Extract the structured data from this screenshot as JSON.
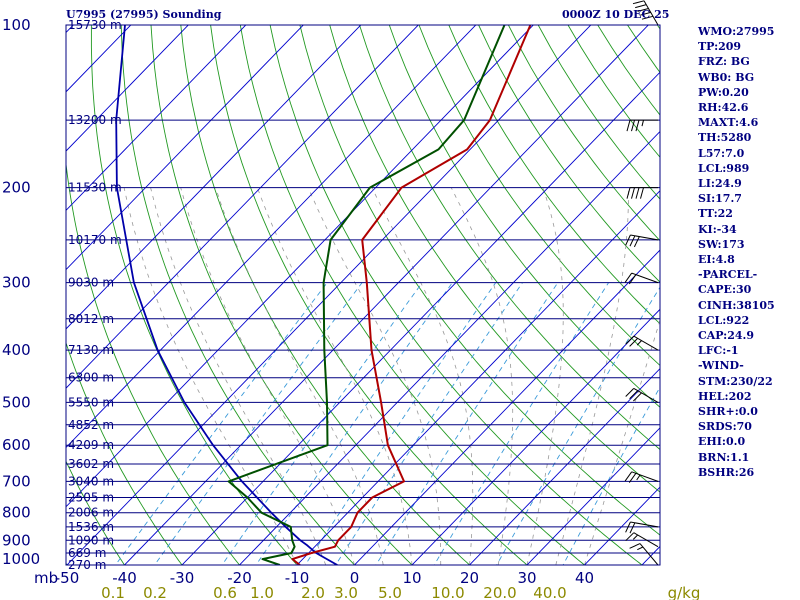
{
  "header": {
    "station_title": "U7995 (27995) Sounding",
    "valid_time": "0000Z 10 DEC 25"
  },
  "stats": [
    "WMO:27995",
    "TP:209",
    "FRZ: BG",
    "WB0: BG",
    "PW:0.20",
    "RH:42.6",
    "MAXT:4.6",
    "TH:5280",
    "L57:7.0",
    "LCL:989",
    "LI:24.9",
    "SI:17.7",
    "TT:22",
    "KI:-34",
    "SW:173",
    "EI:4.8",
    "-PARCEL-",
    "CAPE:30",
    "CINH:38105",
    "LCL:922",
    "CAP:24.9",
    "LFC:-1",
    "-WIND-",
    "STM:230/22",
    "HEL:202",
    "SHR+:0.0",
    "SRDS:70",
    "EHI:0.0",
    "BRN:1.1",
    "BSHR:26"
  ],
  "colors": {
    "frame": "#000080",
    "isobar": "#000080",
    "isotherm": "#0000cd",
    "dry_adiabat": "#229922",
    "moist_adiabat": "#999999",
    "mixing_ratio": "#3a9ad9",
    "temperature": "#b00000",
    "dewpoint": "#005000",
    "parcel": "#0000aa",
    "wind_barb": "#000000"
  },
  "chart_data": {
    "type": "skew-t log-p sounding",
    "pressure_unit": "mb",
    "pressure_range": [
      1000,
      100
    ],
    "temp_range": [
      -50,
      50
    ],
    "pressure_ticks": [
      100,
      200,
      300,
      400,
      500,
      600,
      700,
      800,
      900,
      1000
    ],
    "temp_ticks": [
      "-50",
      "-40",
      "-30",
      "-20",
      "-10",
      "0",
      "10",
      "20",
      "30",
      "40"
    ],
    "mixing_ratio_ticks": [
      "0.1",
      "0.2",
      "0.6",
      "1.0",
      "2.0",
      "3.0",
      "5.0",
      "10.0",
      "20.0",
      "40.0"
    ],
    "mixing_ratio_unit": "g/kg",
    "height_labels": [
      {
        "p": 100,
        "label": "15730 m"
      },
      {
        "p": 150,
        "label": "13200 m"
      },
      {
        "p": 200,
        "label": "11530 m"
      },
      {
        "p": 250,
        "label": "10170 m"
      },
      {
        "p": 300,
        "label": "9030 m"
      },
      {
        "p": 350,
        "label": "8012 m"
      },
      {
        "p": 400,
        "label": "7130 m"
      },
      {
        "p": 450,
        "label": "6300 m"
      },
      {
        "p": 500,
        "label": "5550 m"
      },
      {
        "p": 550,
        "label": "4852 m"
      },
      {
        "p": 600,
        "label": "4209 m"
      },
      {
        "p": 650,
        "label": "3602 m"
      },
      {
        "p": 700,
        "label": "3040 m"
      },
      {
        "p": 750,
        "label": "2505 m"
      },
      {
        "p": 800,
        "label": "2006 m"
      },
      {
        "p": 850,
        "label": "1536 m"
      },
      {
        "p": 900,
        "label": "1090 m"
      },
      {
        "p": 950,
        "label": "669 m"
      },
      {
        "p": 1000,
        "label": "270 m"
      }
    ],
    "temperature": [
      {
        "p": 1000,
        "t": -9.5
      },
      {
        "p": 975,
        "t": -11.8
      },
      {
        "p": 950,
        "t": -9.5
      },
      {
        "p": 925,
        "t": -6.5
      },
      {
        "p": 900,
        "t": -7
      },
      {
        "p": 850,
        "t": -7
      },
      {
        "p": 800,
        "t": -8.3
      },
      {
        "p": 750,
        "t": -8.3
      },
      {
        "p": 700,
        "t": -5.5
      },
      {
        "p": 600,
        "t": -14.4
      },
      {
        "p": 500,
        "t": -22.8
      },
      {
        "p": 400,
        "t": -33.3
      },
      {
        "p": 300,
        "t": -45.5
      },
      {
        "p": 250,
        "t": -53.5
      },
      {
        "p": 200,
        "t": -55.5
      },
      {
        "p": 170,
        "t": -50.5
      },
      {
        "p": 150,
        "t": -51.5
      },
      {
        "p": 100,
        "t": -60.5
      }
    ],
    "dewpoint": [
      {
        "p": 1000,
        "t": -13
      },
      {
        "p": 975,
        "t": -17
      },
      {
        "p": 950,
        "t": -13
      },
      {
        "p": 925,
        "t": -13.5
      },
      {
        "p": 900,
        "t": -15
      },
      {
        "p": 850,
        "t": -17.5
      },
      {
        "p": 800,
        "t": -25
      },
      {
        "p": 750,
        "t": -30
      },
      {
        "p": 700,
        "t": -36
      },
      {
        "p": 600,
        "t": -24.9
      },
      {
        "p": 500,
        "t": -32.2
      },
      {
        "p": 400,
        "t": -41.5
      },
      {
        "p": 300,
        "t": -53
      },
      {
        "p": 250,
        "t": -59
      },
      {
        "p": 200,
        "t": -61
      },
      {
        "p": 170,
        "t": -55.5
      },
      {
        "p": 150,
        "t": -56
      },
      {
        "p": 100,
        "t": -65
      }
    ],
    "parcel_path": [
      {
        "p": 1000,
        "t": -3
      },
      {
        "p": 975,
        "t": -5.8
      },
      {
        "p": 950,
        "t": -8.7
      },
      {
        "p": 920,
        "t": -11.5
      },
      {
        "p": 900,
        "t": -13.6
      },
      {
        "p": 850,
        "t": -18.4
      },
      {
        "p": 800,
        "t": -23.3
      },
      {
        "p": 700,
        "t": -33.7
      },
      {
        "p": 600,
        "t": -44.8
      },
      {
        "p": 500,
        "t": -57
      },
      {
        "p": 400,
        "t": -70.5
      },
      {
        "p": 300,
        "t": -86
      },
      {
        "p": 200,
        "t": -105
      },
      {
        "p": 150,
        "t": -116.5
      },
      {
        "p": 100,
        "t": -131
      }
    ],
    "wind_barbs": [
      {
        "p": 100,
        "dir": 330,
        "kt": 50
      },
      {
        "p": 150,
        "dir": 270,
        "kt": 35
      },
      {
        "p": 200,
        "dir": 270,
        "kt": 40
      },
      {
        "p": 250,
        "dir": 280,
        "kt": 30
      },
      {
        "p": 300,
        "dir": 290,
        "kt": 20
      },
      {
        "p": 400,
        "dir": 300,
        "kt": 25
      },
      {
        "p": 500,
        "dir": 300,
        "kt": 30
      },
      {
        "p": 700,
        "dir": 290,
        "kt": 25
      },
      {
        "p": 850,
        "dir": 280,
        "kt": 20
      },
      {
        "p": 925,
        "dir": 300,
        "kt": 15
      },
      {
        "p": 1000,
        "dir": 320,
        "kt": 15
      }
    ]
  }
}
